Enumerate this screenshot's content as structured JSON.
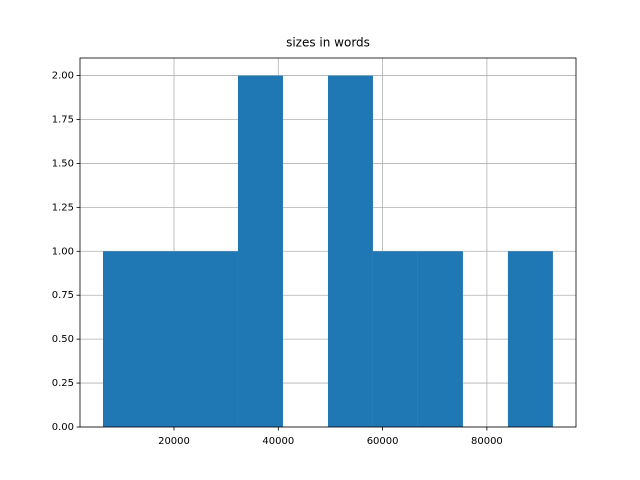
{
  "chart_data": {
    "type": "histogram",
    "title": "sizes in words",
    "bins": [
      6385,
      15013,
      23640,
      32268,
      40895,
      49523,
      58150,
      66778,
      75405,
      84033,
      92660
    ],
    "values": [
      1,
      1,
      1,
      2,
      0,
      2,
      1,
      1,
      0,
      1
    ],
    "color": "#1f77b4",
    "xlim": [
      1975,
      97086
    ],
    "xticks": [
      20000,
      40000,
      60000,
      80000
    ],
    "ylim": [
      0,
      2.1
    ],
    "yticks": [
      {
        "value": 0,
        "label": "0.00"
      },
      {
        "value": 0.25,
        "label": "0.25"
      },
      {
        "value": 0.5,
        "label": "0.50"
      },
      {
        "value": 0.75,
        "label": "0.75"
      },
      {
        "value": 1,
        "label": "1.00"
      },
      {
        "value": 1.25,
        "label": "1.25"
      },
      {
        "value": 1.5,
        "label": "1.50"
      },
      {
        "value": 1.75,
        "label": "1.75"
      },
      {
        "value": 2,
        "label": "2.00"
      }
    ],
    "grid": true
  }
}
